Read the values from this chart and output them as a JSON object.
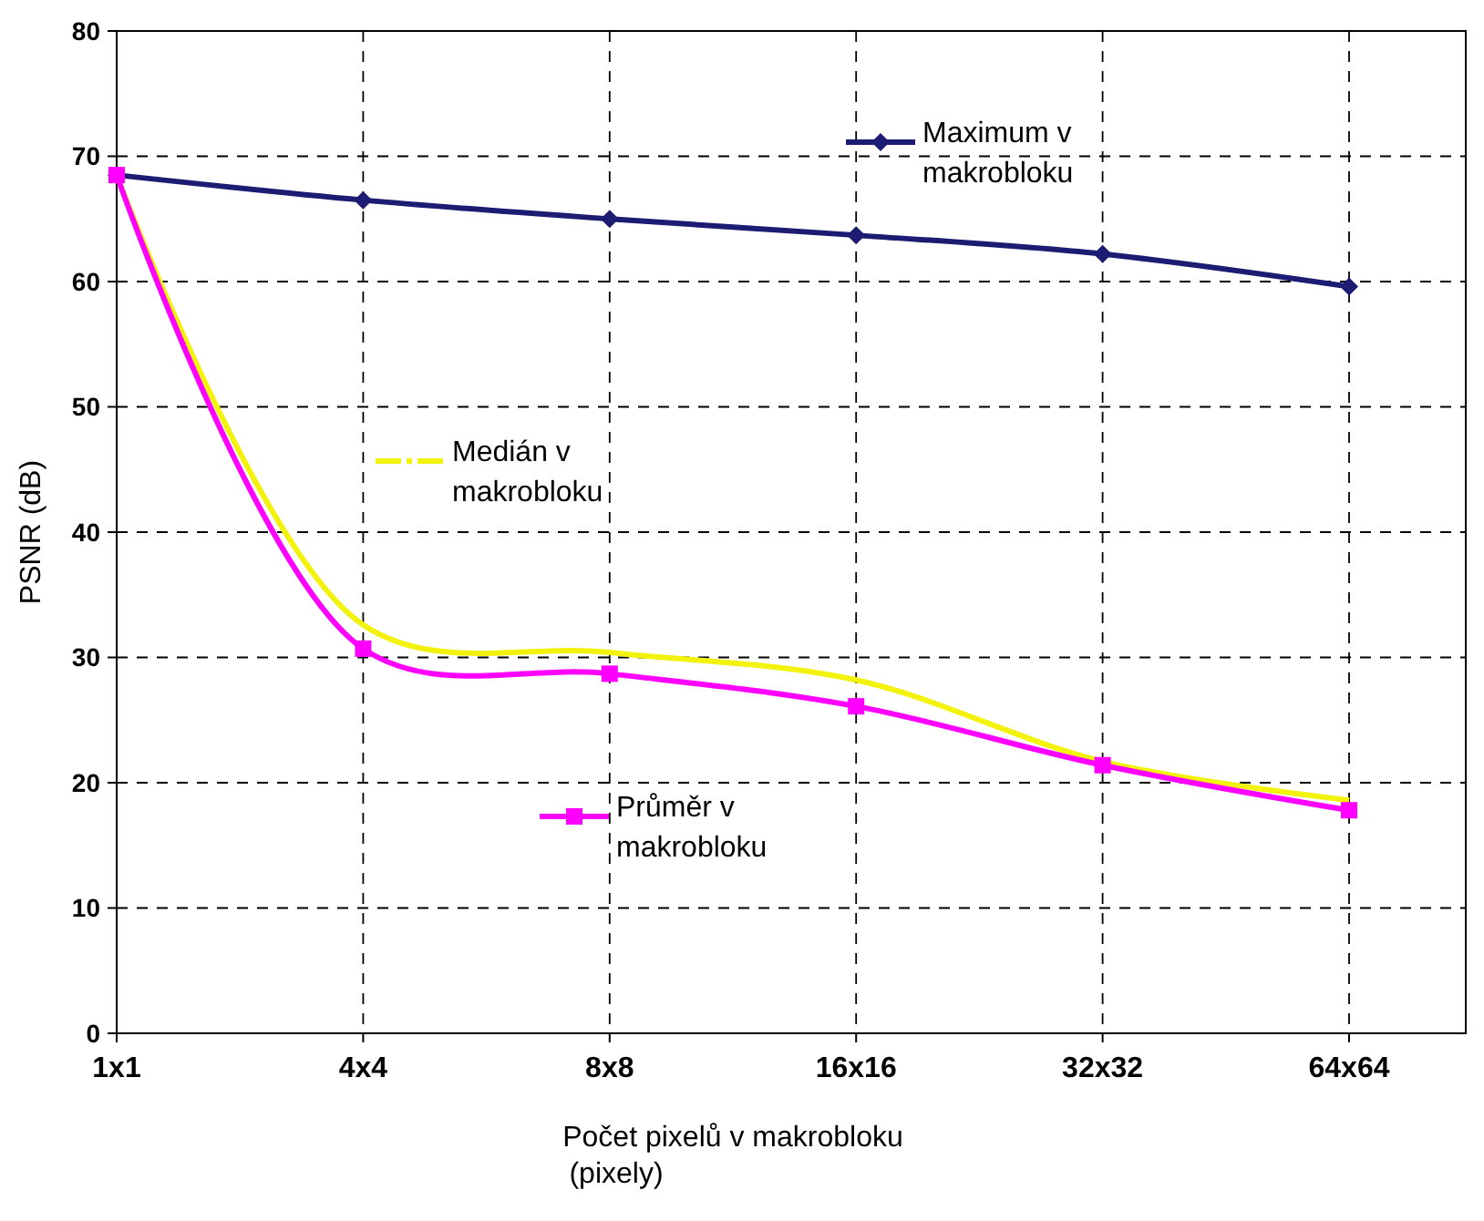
{
  "chart_data": {
    "type": "line",
    "xlabel": "Počet pixelů v makrobloku (pixely)",
    "ylabel": "PSNR (dB)",
    "categories": [
      "1x1",
      "4x4",
      "8x8",
      "16x16",
      "32x32",
      "64x64"
    ],
    "series": [
      {
        "name": "Maximum v makrobloku",
        "color": "#1c1c72",
        "marker": "diamond",
        "values": [
          68.5,
          66.5,
          65,
          63.7,
          62.2,
          59.6
        ]
      },
      {
        "name": "Medián v makrobloku",
        "color": "#f2f20c",
        "marker": "none",
        "values": [
          68.5,
          32.6,
          30.4,
          28.2,
          21.7,
          18.6
        ]
      },
      {
        "name": "Průměr v makrobloku",
        "color": "#ff00ff",
        "marker": "square",
        "values": [
          68.5,
          30.7,
          28.7,
          26.1,
          21.4,
          17.8
        ]
      }
    ],
    "ylim": [
      0,
      80
    ],
    "yticks": [
      0,
      10,
      20,
      30,
      40,
      50,
      60,
      70,
      80
    ],
    "grid": true,
    "line_style": "solid",
    "legend": "top left"
  }
}
